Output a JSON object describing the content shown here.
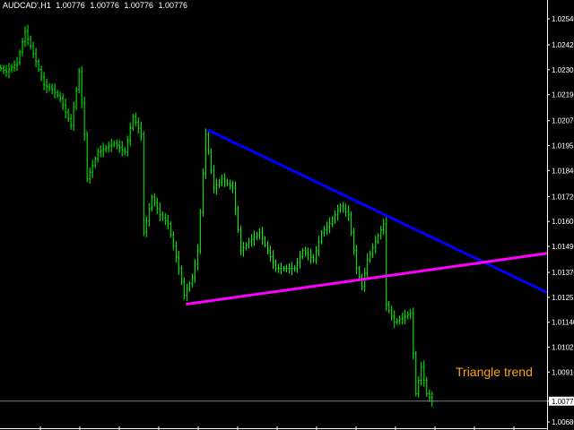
{
  "header": {
    "symbol": "AUDCAD',H1",
    "open": "1.00776",
    "high": "1.00776",
    "low": "1.00776",
    "close": "1.00776"
  },
  "annotation": "Triangle trend",
  "colors": {
    "background": "#000000",
    "bars": "#00ff00",
    "upper_trendline": "#0000ff",
    "lower_trendline": "#ff00ff",
    "annotation": "#ffa500",
    "price_line": "#808080",
    "axis": "#ffffff"
  },
  "chart_data": {
    "type": "bar",
    "title": "AUDCAD',H1",
    "ylim": [
      1.0068,
      1.0254
    ],
    "y_ticks": [
      "1.02540",
      "1.02420",
      "1.02305",
      "1.02190",
      "1.02070",
      "1.01955",
      "1.01840",
      "1.01720",
      "1.01605",
      "1.01490",
      "1.01370",
      "1.01255",
      "1.01140",
      "1.01025",
      "1.00910",
      "1.00776",
      "1.00680"
    ],
    "current_price": "1.00776",
    "grid": false,
    "points": [
      [
        0,
        1.02317
      ],
      [
        3,
        1.02296
      ],
      [
        7,
        1.02338
      ],
      [
        10,
        1.02482
      ],
      [
        13,
        1.02379
      ],
      [
        17,
        1.02234
      ],
      [
        20,
        1.02214
      ],
      [
        23,
        1.02172
      ],
      [
        27,
        1.02049
      ],
      [
        30,
        1.02296
      ],
      [
        32,
        1.02007
      ],
      [
        33,
        1.01801
      ],
      [
        37,
        1.01925
      ],
      [
        40,
        1.01945
      ],
      [
        43,
        1.01966
      ],
      [
        47,
        1.01925
      ],
      [
        50,
        1.0209
      ],
      [
        53,
        1.02007
      ],
      [
        54,
        1.01553
      ],
      [
        57,
        1.01718
      ],
      [
        60,
        1.01636
      ],
      [
        63,
        1.01594
      ],
      [
        67,
        1.01388
      ],
      [
        69,
        1.01264
      ],
      [
        72,
        1.01346
      ],
      [
        74,
        1.0147
      ],
      [
        77,
        1.02007
      ],
      [
        80,
        1.01759
      ],
      [
        83,
        1.01801
      ],
      [
        87,
        1.01759
      ],
      [
        90,
        1.0147
      ],
      [
        93,
        1.01512
      ],
      [
        97,
        1.01553
      ],
      [
        100,
        1.0147
      ],
      [
        103,
        1.01388
      ],
      [
        107,
        1.01388
      ],
      [
        110,
        1.01388
      ],
      [
        113,
        1.0147
      ],
      [
        117,
        1.01429
      ],
      [
        120,
        1.01553
      ],
      [
        123,
        1.01594
      ],
      [
        127,
        1.01677
      ],
      [
        130,
        1.01636
      ],
      [
        133,
        1.01388
      ],
      [
        135,
        1.01305
      ],
      [
        137,
        1.01429
      ],
      [
        140,
        1.01512
      ],
      [
        143,
        1.01594
      ],
      [
        144,
        1.01223
      ],
      [
        147,
        1.0114
      ],
      [
        150,
        1.01161
      ],
      [
        153,
        1.01181
      ],
      [
        155,
        1.0081
      ],
      [
        157,
        1.00934
      ],
      [
        159,
        1.0081
      ],
      [
        161,
        1.00776
      ]
    ],
    "x_range": [
      0,
      203
    ],
    "trendlines": [
      {
        "color": "#0000ff",
        "start": [
          77,
          1.02028
        ],
        "end": [
          203,
          1.01277
        ]
      },
      {
        "color": "#ff00ff",
        "start": [
          69,
          1.01223
        ],
        "end": [
          203,
          1.01458
        ]
      }
    ]
  }
}
